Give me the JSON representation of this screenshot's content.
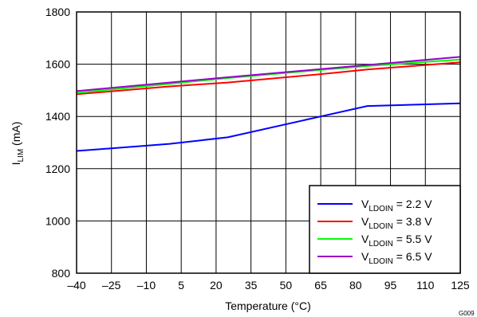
{
  "chart_data": {
    "type": "line",
    "xlabel": "Temperature (°C)",
    "ylabel": {
      "main": "I",
      "sub": "LIM",
      "suffix": " (mA)"
    },
    "xlim": [
      -40,
      125
    ],
    "ylim": [
      800,
      1800
    ],
    "x_ticks": [
      -40,
      -25,
      -10,
      5,
      20,
      35,
      50,
      65,
      80,
      95,
      110,
      125
    ],
    "x_tick_labels": [
      "–40",
      "–25",
      "–10",
      "5",
      "20",
      "35",
      "50",
      "65",
      "80",
      "95",
      "110",
      "125"
    ],
    "y_ticks": [
      800,
      1000,
      1200,
      1400,
      1600,
      1800
    ],
    "y_tick_labels": [
      "800",
      "1000",
      "1200",
      "1400",
      "1600",
      "1800"
    ],
    "grid": true,
    "legend_position": "bottom-right",
    "figure_id": "G009",
    "series": [
      {
        "name": "V_LDOIN = 2.2 V",
        "label": {
          "main": "V",
          "sub": "LDOIN",
          "suffix": " = 2.2 V"
        },
        "color": "#0000ff",
        "x": [
          -40,
          -25,
          -10,
          0,
          25,
          65,
          85,
          125
        ],
        "y": [
          1268,
          1278,
          1288,
          1295,
          1320,
          1400,
          1440,
          1450
        ]
      },
      {
        "name": "V_LDOIN = 3.8 V",
        "label": {
          "main": "V",
          "sub": "LDOIN",
          "suffix": " = 3.8 V"
        },
        "color": "#ff0000",
        "x": [
          -40,
          0,
          25,
          65,
          85,
          125
        ],
        "y": [
          1485,
          1515,
          1530,
          1562,
          1580,
          1607
        ]
      },
      {
        "name": "V_LDOIN = 5.5 V",
        "label": {
          "main": "V",
          "sub": "LDOIN",
          "suffix": " = 5.5 V"
        },
        "color": "#00ff00",
        "x": [
          -40,
          0,
          25,
          65,
          85,
          125
        ],
        "y": [
          1490,
          1525,
          1547,
          1578,
          1593,
          1618
        ]
      },
      {
        "name": "V_LDOIN = 6.5 V",
        "label": {
          "main": "V",
          "sub": "LDOIN",
          "suffix": " = 6.5 V"
        },
        "color": "#9900cc",
        "x": [
          -40,
          0,
          25,
          65,
          85,
          125
        ],
        "y": [
          1497,
          1530,
          1550,
          1581,
          1597,
          1628
        ]
      }
    ]
  }
}
